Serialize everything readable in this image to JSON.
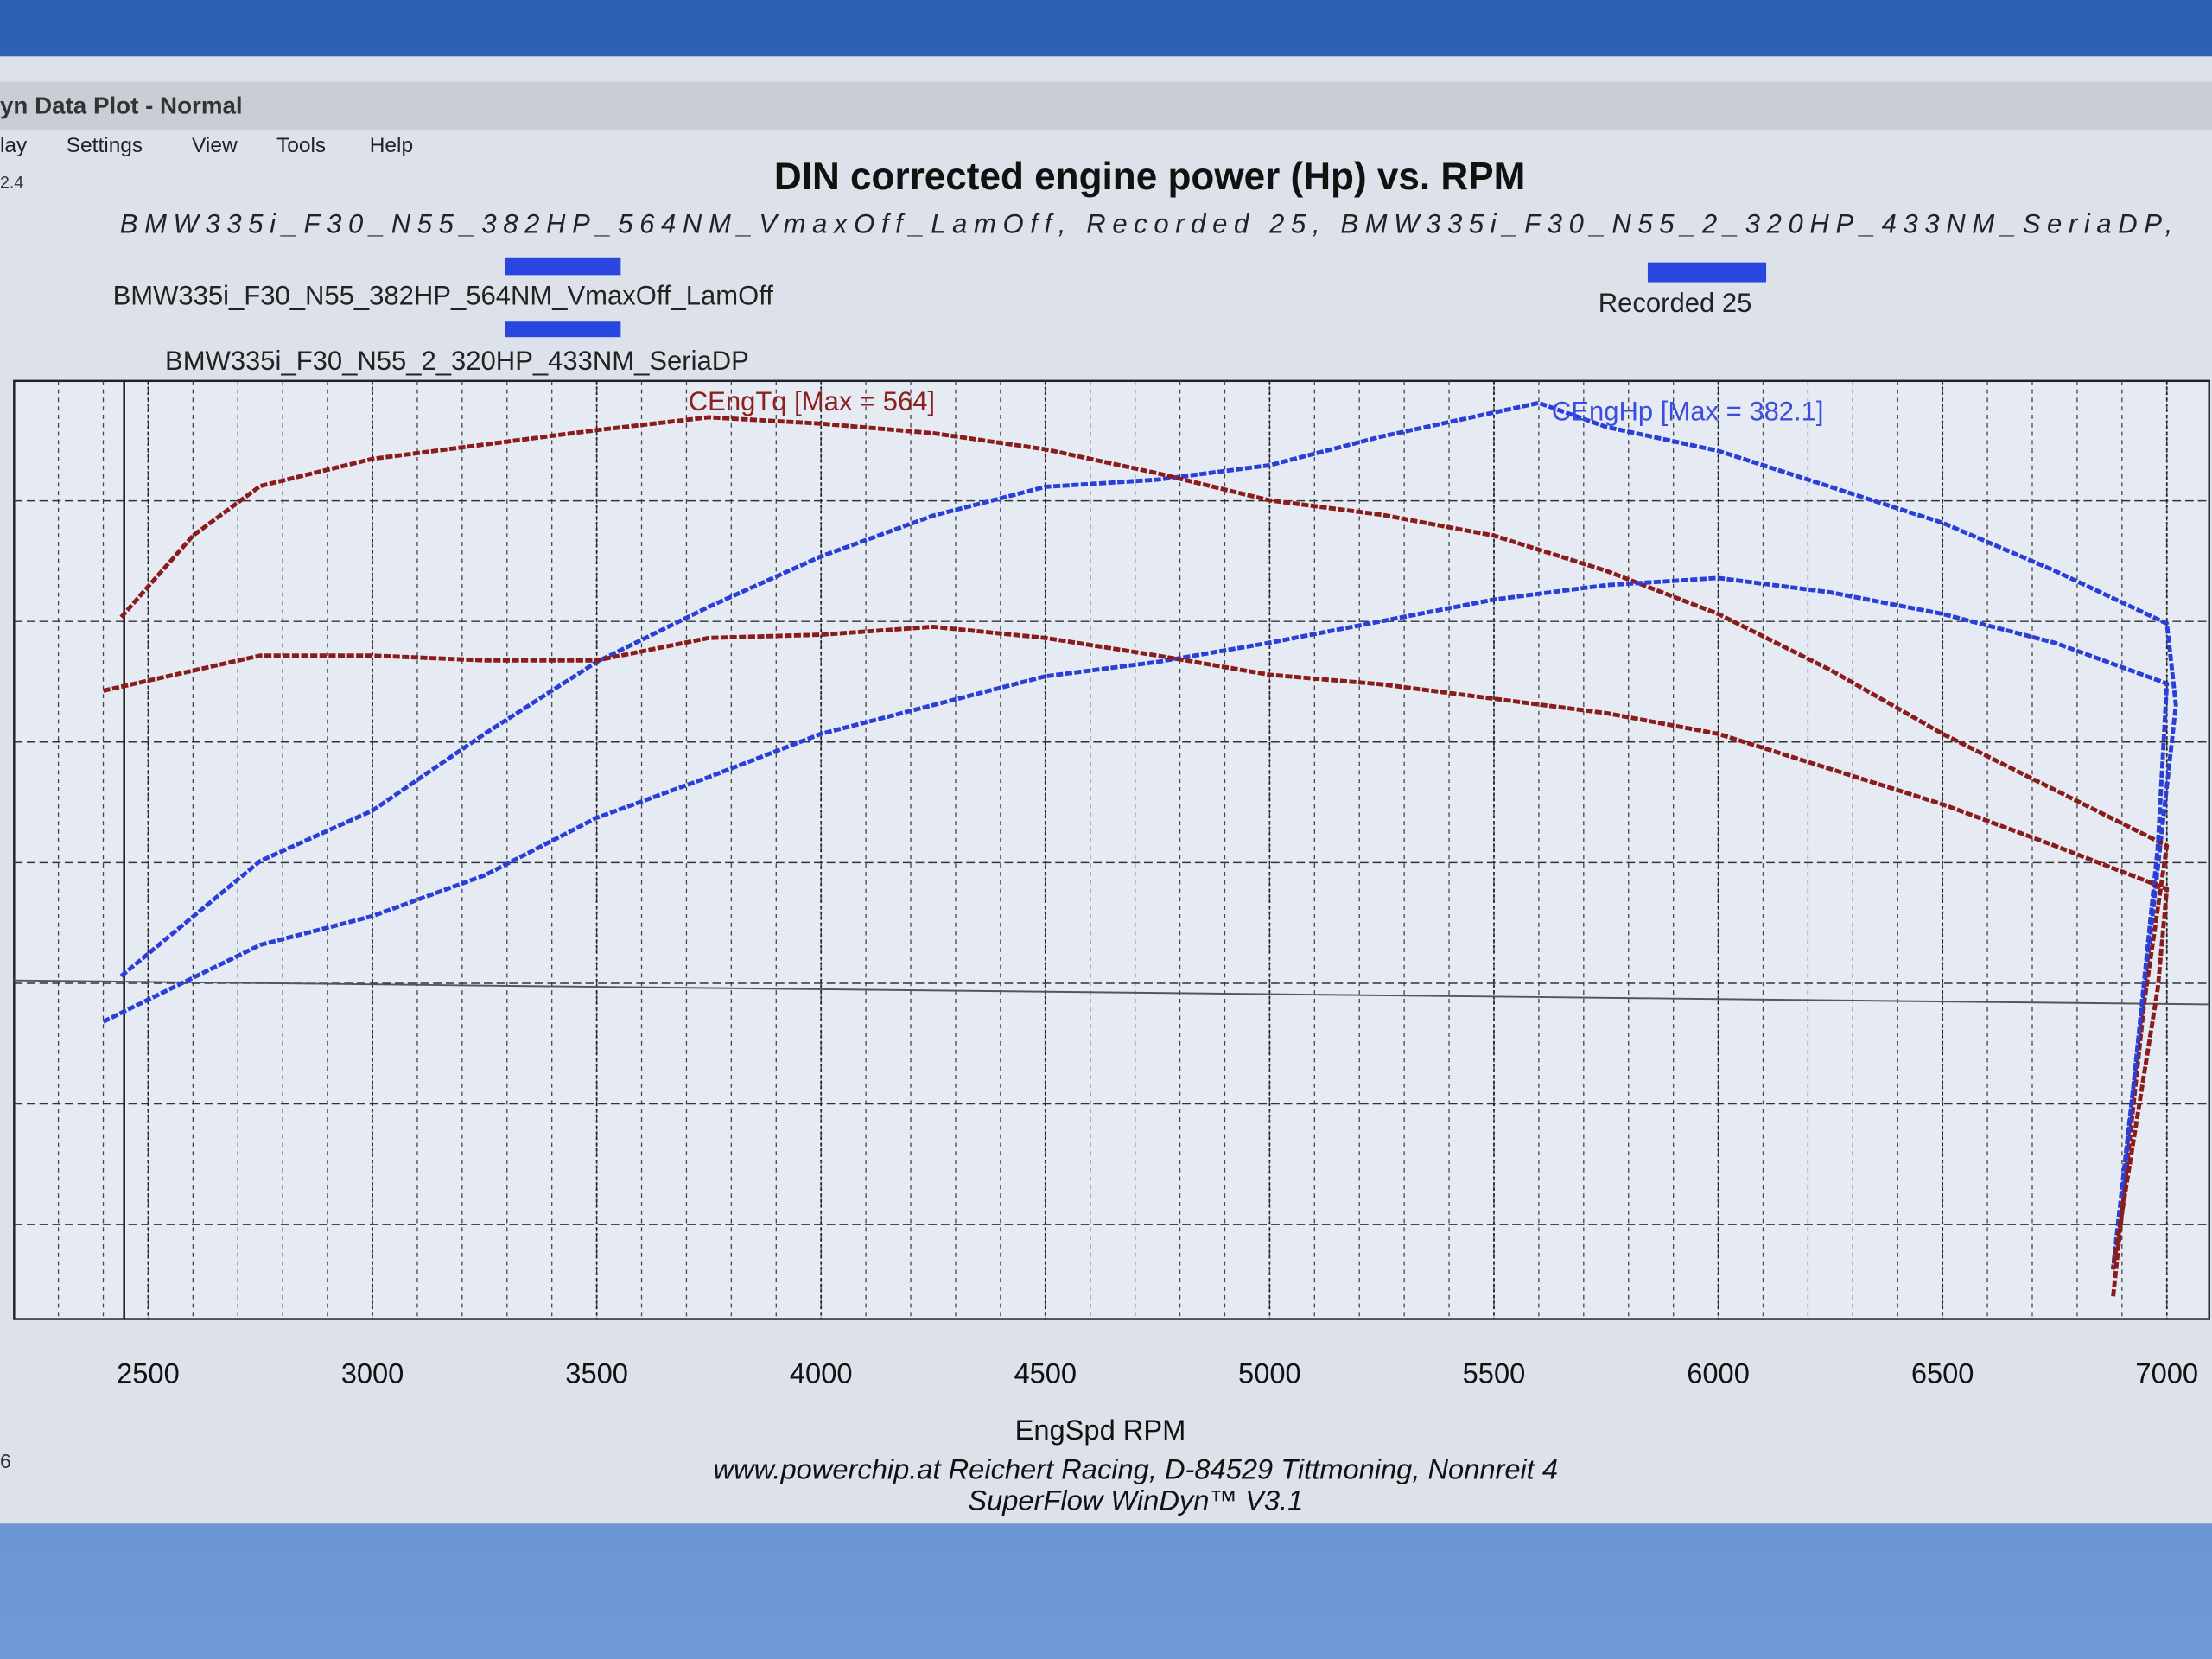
{
  "window": {
    "title": "yn Data Plot - Normal",
    "menu": [
      "lay",
      "Settings",
      "View",
      "Tools",
      "Help"
    ],
    "edge_labels": [
      "2.4",
      "6"
    ]
  },
  "chart_data": {
    "type": "line",
    "title": "DIN corrected engine power (Hp) vs. RPM",
    "subtitle": "BMW335i_F30_N55_382HP_564NM_VmaxOff_LamOff, Recorded 25, BMW335i_F30_N55_2_320HP_433NM_SeriaDP,",
    "x_label": "EngSpd RPM",
    "footer": [
      "www.powerchip.at  Reichert Racing, D-84529 Tittmoning, Nonnreit 4",
      "SuperFlow WinDyn™ V3.1"
    ],
    "xlim": [
      2200,
      7100
    ],
    "xticks": [
      2500,
      3000,
      3500,
      4000,
      4500,
      5000,
      5500,
      6000,
      6500,
      7000
    ],
    "ylim": [
      0,
      400
    ],
    "y2lim": [
      0,
      600
    ],
    "grid": true,
    "legend": [
      {
        "name": "BMW335i_F30_N55_382HP_564NM_VmaxOff_LamOff",
        "color": "#2a46e0"
      },
      {
        "name": "Recorded 25",
        "color": "#2a46e0"
      },
      {
        "name": "BMW335i_F30_N55_2_320HP_433NM_SeriaDP",
        "color": "#2a46e0"
      }
    ],
    "annotations": [
      {
        "text": "CEngTq [Max = 564]",
        "color": "#8a2020"
      },
      {
        "text": "CEngHp [Max = 382.1]",
        "color": "#3a4de0"
      }
    ],
    "series": [
      {
        "color": "#2a3fd8",
        "x": [
          2440,
          2750,
          3000,
          3250,
          3500,
          3750,
          4000,
          4250,
          4500,
          4750,
          5000,
          5250,
          5600,
          5750,
          6000,
          6250,
          6500,
          6750,
          7000,
          7020,
          6950,
          6880
        ],
        "values": [
          143,
          191,
          212,
          244,
          274,
          297,
          318,
          335,
          347,
          350,
          356,
          368,
          382,
          372,
          362,
          347,
          332,
          312,
          290,
          256,
          138,
          21
        ]
      },
      {
        "color": "#8b1c1c",
        "axis": "y2",
        "x": [
          2440,
          2600,
          2750,
          3000,
          3250,
          3500,
          3750,
          4000,
          4250,
          4500,
          4750,
          5000,
          5250,
          5500,
          5750,
          6000,
          6250,
          6500,
          6750,
          7000,
          6950,
          6880
        ],
        "values": [
          439,
          490,
          521,
          538,
          547,
          556,
          564,
          560,
          554,
          544,
          529,
          512,
          503,
          490,
          468,
          441,
          406,
          366,
          331,
          296,
          199,
          13
        ]
      },
      {
        "color": "#2a3fd8",
        "x": [
          2400,
          2750,
          3000,
          3250,
          3500,
          3750,
          4000,
          4250,
          4500,
          4750,
          5000,
          5250,
          5500,
          5750,
          6000,
          6250,
          6500,
          6750,
          7000,
          6980,
          6900
        ],
        "values": [
          124,
          156,
          168,
          185,
          209,
          226,
          244,
          256,
          268,
          274,
          282,
          291,
          300,
          306,
          309,
          303,
          294,
          282,
          265,
          197,
          50
        ]
      },
      {
        "color": "#8b1c1c",
        "axis": "y2",
        "x": [
          2400,
          2750,
          3000,
          3250,
          3500,
          3750,
          4000,
          4250,
          4500,
          4750,
          5000,
          5250,
          5500,
          5750,
          6000,
          6250,
          6500,
          6750,
          7000,
          6980,
          6880
        ],
        "values": [
          393,
          415,
          415,
          412,
          412,
          426,
          428,
          433,
          426,
          415,
          403,
          397,
          388,
          379,
          366,
          344,
          322,
          296,
          269,
          207,
          31
        ]
      }
    ]
  }
}
